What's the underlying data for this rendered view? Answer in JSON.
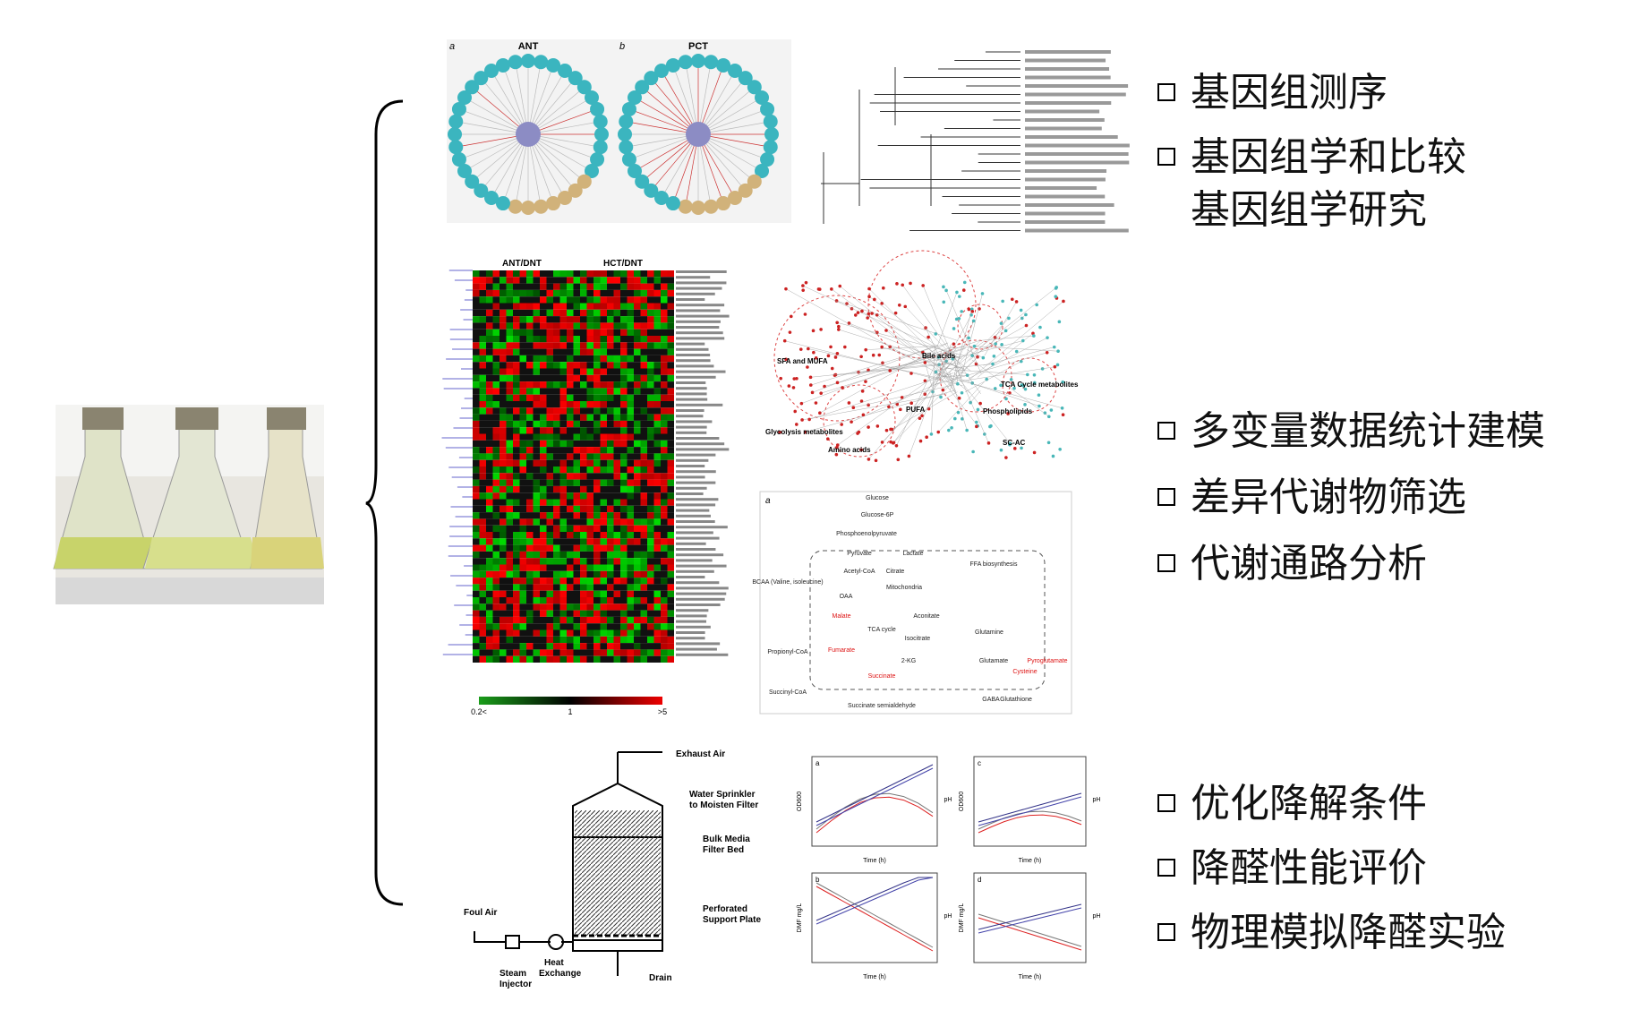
{
  "genomics": {
    "network": {
      "a": "a",
      "a_title": "ANT",
      "b": "b",
      "b_title": "PCT"
    },
    "bullets": [
      [
        "基因组测序"
      ],
      [
        "基因组学和比较",
        "基因组学研究"
      ]
    ]
  },
  "metabolomics": {
    "heatmap": {
      "left": "ANT/DNT",
      "right": "HCT/DNT",
      "scale": [
        "0.2<",
        "1",
        ">5"
      ]
    },
    "network": [
      "SFA and MUFA",
      "Bile acids",
      "TCA Cycle metabolites",
      "PUFA",
      "Phospholipids",
      "Glycolysis metabolites",
      "Amino acids",
      "SC-AC"
    ],
    "pathway": {
      "panel": "a",
      "labels": [
        "Glucose",
        "Glucose-6P",
        "Phosphoenolpyruvate",
        "Pyruvate",
        "Lactate",
        "Acetyl-CoA",
        "Mitochondria",
        "TCA cycle",
        "Citrate",
        "Aconitate",
        "Isocitrate",
        "2-KG",
        "Succinate",
        "Fumarate",
        "Malate",
        "OAA",
        "FFA biosynthesis",
        "Glutamine",
        "Glutamate",
        "Pyroglutamate",
        "Cysteine",
        "GABA",
        "Glutathione",
        "Succinate semialdehyde",
        "BCAA (Valine, isoleucine)",
        "Propionyl-CoA",
        "Succinyl-CoA"
      ]
    },
    "bullets": [
      [
        "多变量数据统计建模"
      ],
      [
        "差异代谢物筛选"
      ],
      [
        "代谢通路分析"
      ]
    ]
  },
  "degradation": {
    "biofilter": [
      "Exhaust Air",
      "Water Sprinkler",
      "to Moisten Filter",
      "Bulk Media",
      "Filter Bed",
      "Perforated",
      "Support Plate",
      "Foul Air",
      "Steam",
      "Injector",
      "Heat",
      "Exchange",
      "Drain"
    ],
    "graphs": {
      "panels": [
        "a",
        "c",
        "b",
        "d"
      ],
      "x_title": "Time (h)",
      "y_titles": [
        "OD600",
        "pH",
        "DMF mg/L"
      ]
    },
    "bullets": [
      [
        "优化降解条件"
      ],
      [
        "降醛性能评价"
      ],
      [
        "物理模拟降醛实验"
      ]
    ]
  }
}
